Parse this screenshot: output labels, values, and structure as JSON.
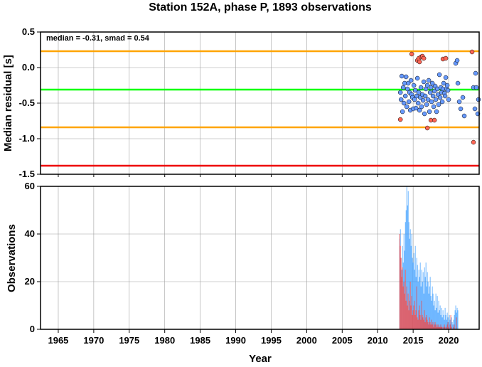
{
  "chart_data": [
    {
      "type": "scatter",
      "title": "Station 152A, phase P, 1893 observations",
      "ylabel": "Median residual [s]",
      "xlabel": "",
      "xlim": [
        1962.5,
        2024.3
      ],
      "ylim": [
        -1.5,
        0.5
      ],
      "xticks": [
        1965,
        1970,
        1975,
        1980,
        1985,
        1990,
        1995,
        2000,
        2005,
        2010,
        2015,
        2020
      ],
      "yticks": [
        -1.5,
        -1.0,
        -0.5,
        0.0,
        0.5
      ],
      "ytick_labels": [
        "-1.5",
        "-1.0",
        "-0.5",
        "0.0",
        "0.5"
      ],
      "grid": true,
      "annotation": "median = -0.31, smad = 0.54",
      "reference_lines": [
        {
          "y": 0.23,
          "color": "#ffa500"
        },
        {
          "y": -0.31,
          "color": "#00ff00"
        },
        {
          "y": -0.84,
          "color": "#ffa500"
        },
        {
          "y": -1.38,
          "color": "#ee0000"
        }
      ],
      "series": [
        {
          "color": "#6699ff",
          "points": [
            [
              2013.2,
              -0.35
            ],
            [
              2013.3,
              -0.45
            ],
            [
              2013.4,
              -0.12
            ],
            [
              2013.5,
              -0.62
            ],
            [
              2013.6,
              -0.28
            ],
            [
              2013.7,
              -0.5
            ],
            [
              2013.8,
              -0.22
            ],
            [
              2013.9,
              -0.4
            ],
            [
              2014.0,
              -0.13
            ],
            [
              2014.1,
              -0.55
            ],
            [
              2014.2,
              -0.3
            ],
            [
              2014.3,
              -0.22
            ],
            [
              2014.4,
              -0.48
            ],
            [
              2014.5,
              -0.35
            ],
            [
              2014.6,
              -0.6
            ],
            [
              2014.7,
              -0.18
            ],
            [
              2014.8,
              -0.38
            ],
            [
              2014.9,
              -0.42
            ],
            [
              2015.0,
              -0.58
            ],
            [
              2015.1,
              -0.25
            ],
            [
              2015.2,
              -0.45
            ],
            [
              2015.3,
              -0.32
            ],
            [
              2015.4,
              -0.57
            ],
            [
              2015.5,
              -0.4
            ],
            [
              2015.6,
              -0.15
            ],
            [
              2015.7,
              -0.5
            ],
            [
              2015.8,
              -0.35
            ],
            [
              2015.9,
              -0.6
            ],
            [
              2016.0,
              -0.42
            ],
            [
              2016.1,
              -0.28
            ],
            [
              2016.2,
              -0.55
            ],
            [
              2016.3,
              -0.38
            ],
            [
              2016.4,
              -0.46
            ],
            [
              2016.5,
              -0.2
            ],
            [
              2016.6,
              -0.65
            ],
            [
              2016.7,
              -0.4
            ],
            [
              2016.8,
              -0.3
            ],
            [
              2016.9,
              -0.52
            ],
            [
              2017.0,
              -0.25
            ],
            [
              2017.1,
              -0.45
            ],
            [
              2017.2,
              -0.18
            ],
            [
              2017.3,
              -0.62
            ],
            [
              2017.4,
              -0.35
            ],
            [
              2017.5,
              -0.28
            ],
            [
              2017.6,
              -0.48
            ],
            [
              2017.7,
              -0.22
            ],
            [
              2017.8,
              -0.4
            ],
            [
              2017.9,
              -0.55
            ],
            [
              2018.0,
              -0.33
            ],
            [
              2018.1,
              -0.26
            ],
            [
              2018.2,
              -0.45
            ],
            [
              2018.3,
              -0.62
            ],
            [
              2018.4,
              -0.3
            ],
            [
              2018.5,
              -0.38
            ],
            [
              2018.6,
              -0.52
            ],
            [
              2018.7,
              -0.1
            ],
            [
              2018.8,
              -0.42
            ],
            [
              2018.9,
              -0.28
            ],
            [
              2019.0,
              -0.35
            ],
            [
              2019.1,
              -0.48
            ],
            [
              2019.2,
              -0.3
            ],
            [
              2019.3,
              -0.22
            ],
            [
              2019.4,
              -0.36
            ],
            [
              2019.5,
              -0.4
            ],
            [
              2019.6,
              -0.14
            ],
            [
              2019.7,
              -0.3
            ],
            [
              2019.8,
              -0.25
            ],
            [
              2019.9,
              -0.32
            ],
            [
              2020.0,
              -0.45
            ],
            [
              2021.0,
              0.06
            ],
            [
              2021.2,
              0.1
            ],
            [
              2021.3,
              -0.22
            ],
            [
              2021.5,
              -0.48
            ],
            [
              2021.7,
              -0.58
            ],
            [
              2022.0,
              -0.42
            ],
            [
              2022.2,
              -0.68
            ],
            [
              2023.5,
              -0.28
            ],
            [
              2023.7,
              -0.58
            ],
            [
              2023.8,
              -0.08
            ],
            [
              2023.9,
              -0.28
            ],
            [
              2024.1,
              -0.65
            ],
            [
              2024.2,
              -0.45
            ]
          ]
        },
        {
          "color": "#ff6655",
          "points": [
            [
              2013.2,
              -0.73
            ],
            [
              2014.8,
              0.19
            ],
            [
              2015.6,
              0.1
            ],
            [
              2015.8,
              0.13
            ],
            [
              2015.9,
              0.08
            ],
            [
              2016.1,
              0.15
            ],
            [
              2016.3,
              0.16
            ],
            [
              2016.5,
              0.13
            ],
            [
              2017.0,
              -0.85
            ],
            [
              2017.5,
              -0.74
            ],
            [
              2018.0,
              -0.74
            ],
            [
              2019.2,
              0.12
            ],
            [
              2019.6,
              0.13
            ],
            [
              2023.3,
              0.22
            ],
            [
              2023.5,
              -1.05
            ]
          ]
        }
      ]
    },
    {
      "type": "bar",
      "xlabel": "Year",
      "ylabel": "Observations",
      "xlim": [
        1962.5,
        2024.3
      ],
      "ylim": [
        0,
        60
      ],
      "yticks": [
        0,
        20,
        40,
        60
      ],
      "xticks": [
        1965,
        1970,
        1975,
        1980,
        1985,
        1990,
        1995,
        2000,
        2005,
        2010,
        2015,
        2020
      ],
      "grid": true,
      "series": [
        {
          "color": "#3399ff",
          "x_start": 2013.1,
          "x_step": 0.1,
          "values": [
            38,
            42,
            30,
            25,
            35,
            28,
            40,
            33,
            45,
            50,
            60,
            52,
            58,
            45,
            38,
            42,
            35,
            40,
            30,
            28,
            32,
            25,
            35,
            22,
            30,
            27,
            20,
            25,
            22,
            28,
            18,
            25,
            20,
            24,
            15,
            26,
            22,
            28,
            18,
            24,
            20,
            15,
            18,
            22,
            14,
            12,
            18,
            15,
            10,
            12,
            8,
            15,
            9,
            14,
            7,
            12,
            8,
            10,
            6,
            9,
            5,
            8,
            6,
            4,
            9,
            6,
            4,
            7,
            5,
            3,
            6,
            4,
            2,
            5,
            3,
            2,
            4,
            6,
            8,
            10,
            7,
            9,
            8
          ]
        },
        {
          "color": "#ee3333",
          "x_start": 2013.1,
          "x_step": 0.1,
          "values": [
            40,
            35,
            30,
            22,
            26,
            18,
            20,
            15,
            25,
            12,
            18,
            10,
            15,
            8,
            12,
            20,
            10,
            14,
            6,
            8,
            10,
            12,
            6,
            8,
            18,
            5,
            4,
            8,
            10,
            6,
            4,
            12,
            6,
            5,
            4,
            8,
            3,
            5,
            6,
            4,
            3,
            2,
            5,
            3,
            2,
            4,
            2,
            3,
            1,
            2,
            3,
            2,
            1,
            2,
            1,
            2,
            1,
            1,
            2,
            1,
            1,
            0,
            1,
            2,
            1,
            0,
            1,
            2,
            3,
            1,
            0,
            2,
            6,
            1,
            0,
            0,
            1,
            2,
            0,
            0,
            5,
            0,
            0
          ]
        }
      ]
    }
  ]
}
